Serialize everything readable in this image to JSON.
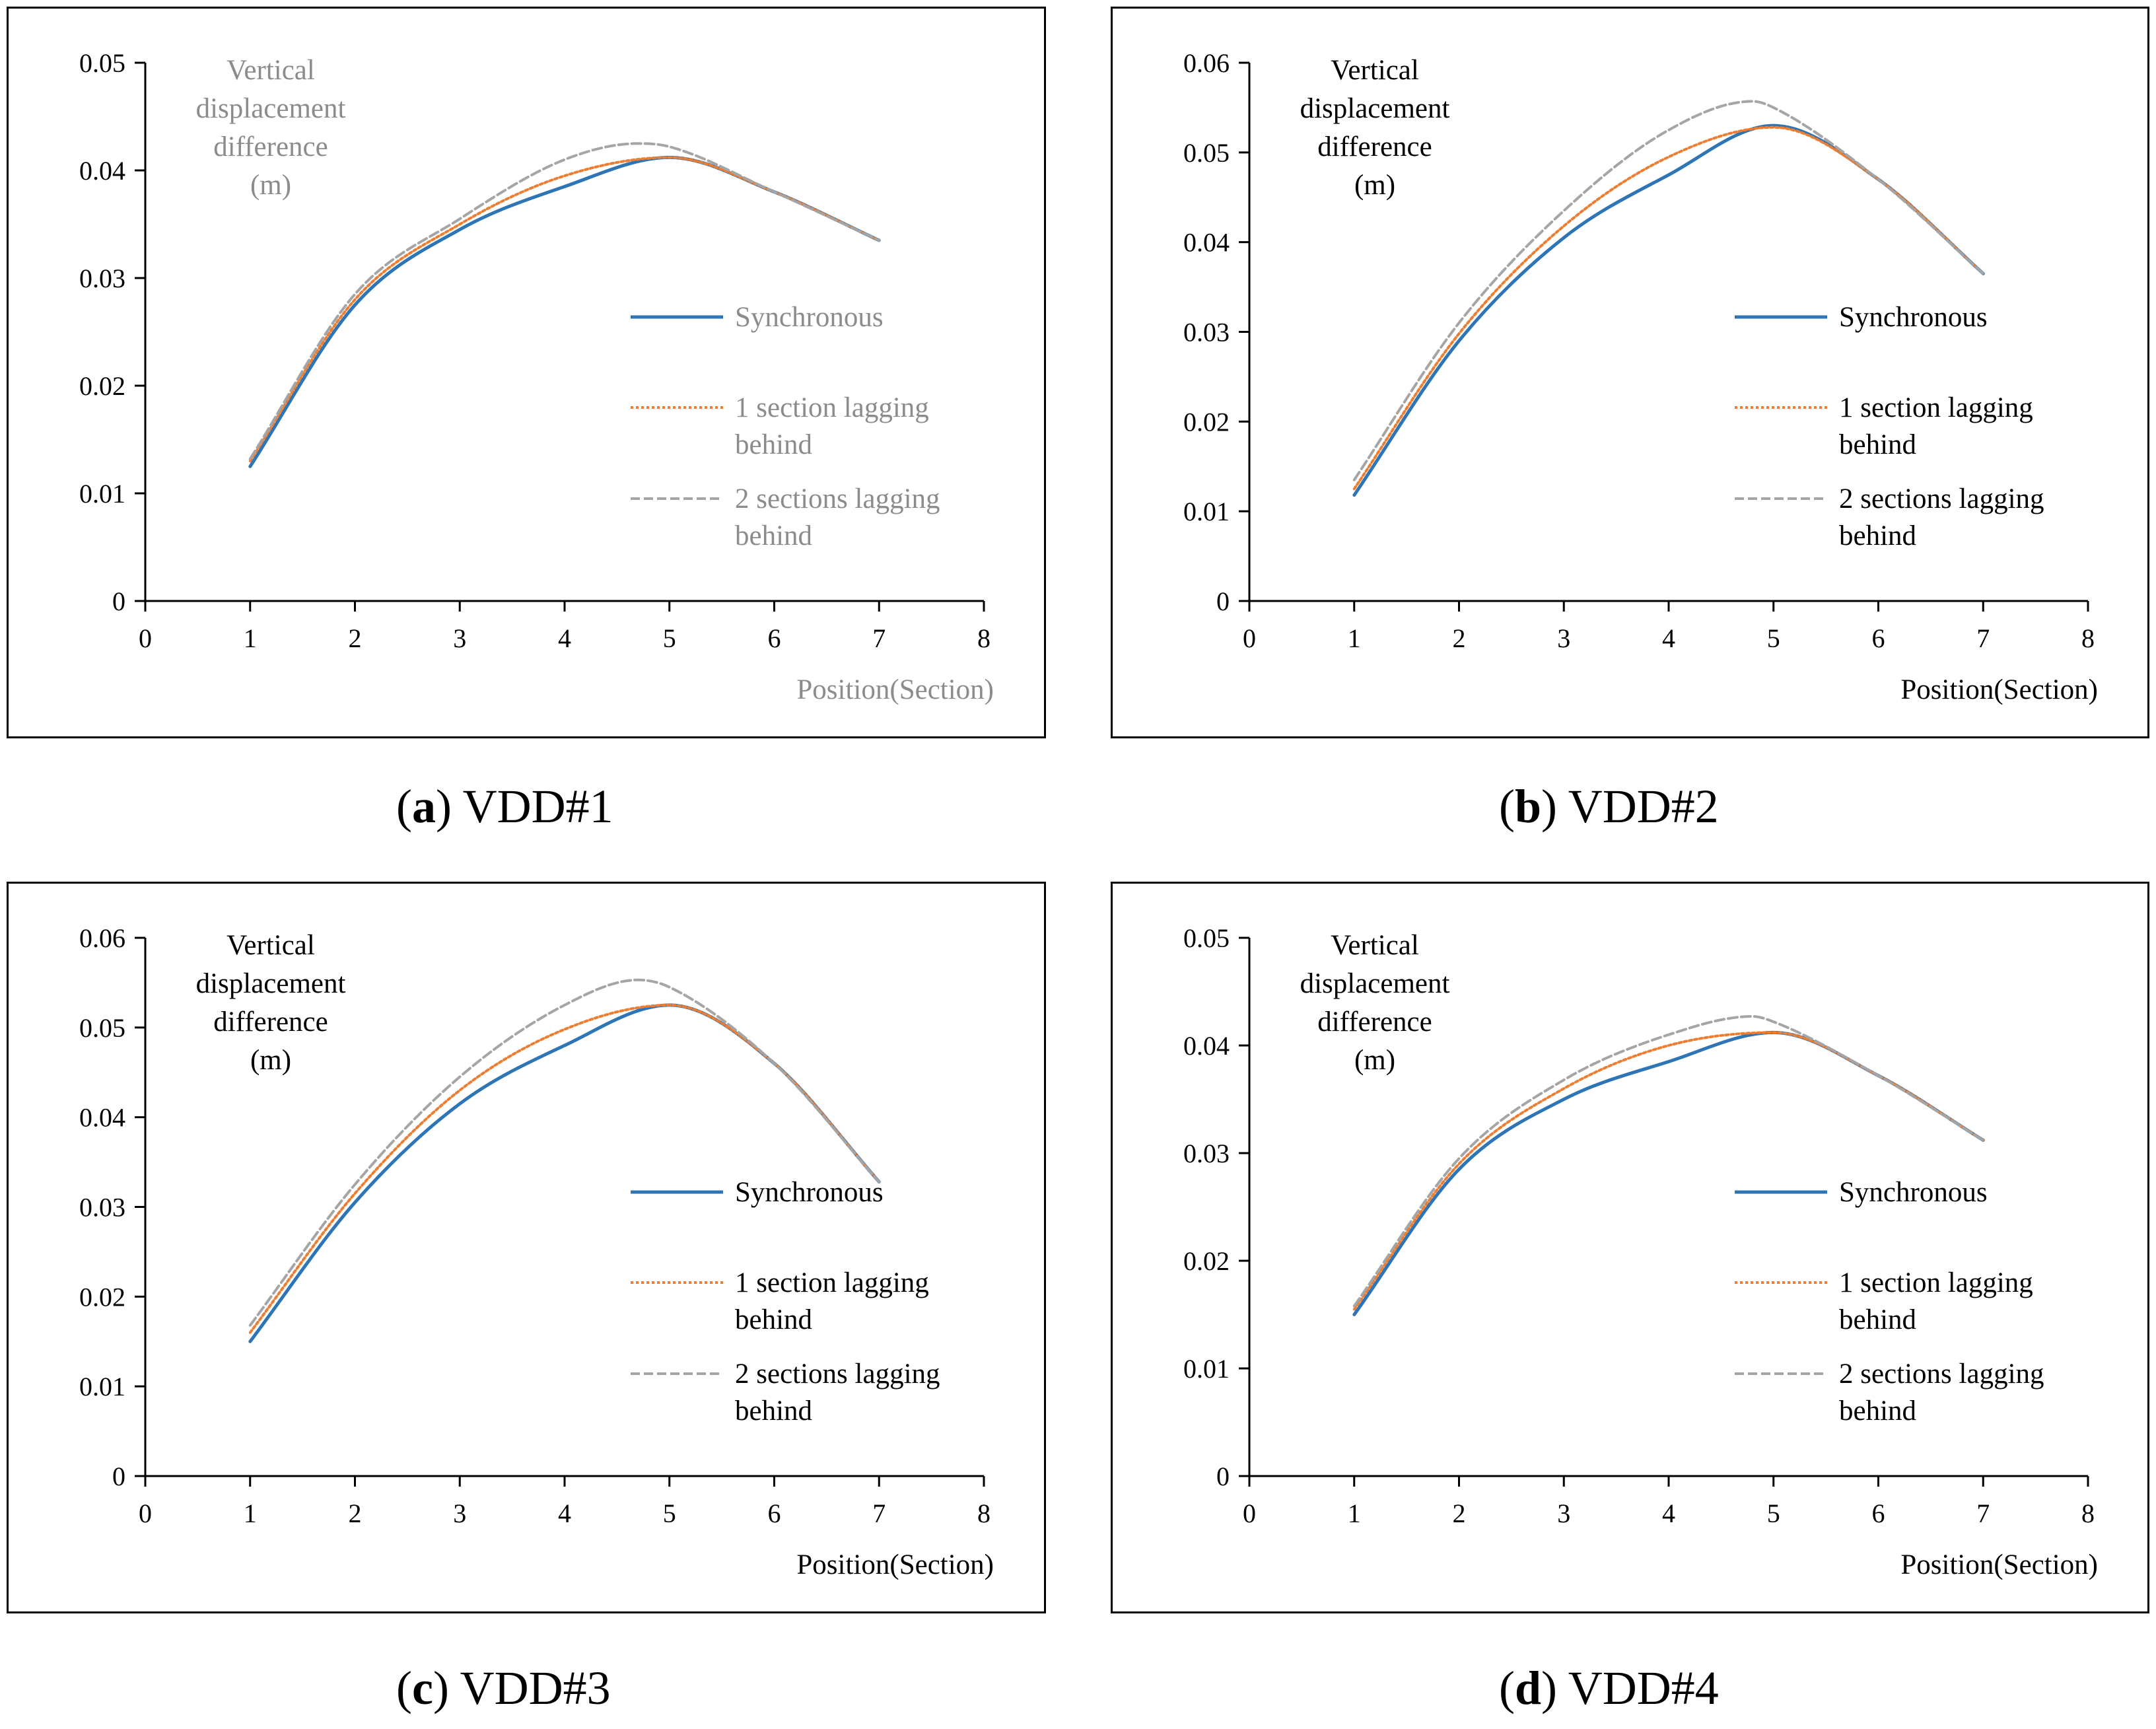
{
  "charts": [
    {
      "caption_letter": "a",
      "caption_text": "VDD#1",
      "chart_data": {
        "type": "line",
        "ylabel_lines": [
          "Vertical",
          "displacement",
          "difference",
          "(m)"
        ],
        "xlabel": "Position(Section)",
        "label_color": "#8c8c8c",
        "xlim": [
          0,
          8
        ],
        "ylim": [
          0,
          0.05
        ],
        "xticks": [
          "0",
          "1",
          "2",
          "3",
          "4",
          "5",
          "6",
          "7",
          "8"
        ],
        "yticks": [
          "0",
          "0.01",
          "0.02",
          "0.03",
          "0.04",
          "0.05"
        ],
        "legend_position": "right",
        "series": [
          {
            "name": "Synchronous",
            "color": "#2e75b6",
            "dash": "solid",
            "x": [
              1,
              2,
              3,
              4,
              5,
              6,
              7
            ],
            "y": [
              0.0125,
              0.0275,
              0.0345,
              0.0385,
              0.0412,
              0.038,
              0.0335
            ]
          },
          {
            "name": "1 section lagging behind",
            "color": "#ed7d31",
            "dash": "dotted",
            "x": [
              1,
              2,
              3,
              4,
              5,
              6,
              7
            ],
            "y": [
              0.013,
              0.028,
              0.035,
              0.0395,
              0.0412,
              0.038,
              0.0335
            ]
          },
          {
            "name": "2 sections lagging behind",
            "color": "#a5a5a5",
            "dash": "dashed",
            "x": [
              1,
              2,
              3,
              4,
              4.7,
              5,
              6,
              7
            ],
            "y": [
              0.0132,
              0.0285,
              0.0355,
              0.041,
              0.0425,
              0.0422,
              0.038,
              0.0335
            ]
          }
        ]
      }
    },
    {
      "caption_letter": "b",
      "caption_text": "VDD#2",
      "chart_data": {
        "type": "line",
        "ylabel_lines": [
          "Vertical",
          "displacement",
          "difference",
          "(m)"
        ],
        "xlabel": "Position(Section)",
        "label_color": "#000000",
        "xlim": [
          0,
          8
        ],
        "ylim": [
          0,
          0.06
        ],
        "xticks": [
          "0",
          "1",
          "2",
          "3",
          "4",
          "5",
          "6",
          "7",
          "8"
        ],
        "yticks": [
          "0",
          "0.01",
          "0.02",
          "0.03",
          "0.04",
          "0.05",
          "0.06"
        ],
        "legend_position": "right",
        "series": [
          {
            "name": "Synchronous",
            "color": "#2e75b6",
            "dash": "solid",
            "x": [
              1,
              2,
              3,
              4,
              5,
              6,
              7
            ],
            "y": [
              0.0118,
              0.029,
              0.0405,
              0.0475,
              0.053,
              0.047,
              0.0365
            ]
          },
          {
            "name": "1 section lagging behind",
            "color": "#ed7d31",
            "dash": "dotted",
            "x": [
              1,
              2,
              3,
              4,
              5,
              6,
              7
            ],
            "y": [
              0.0125,
              0.0298,
              0.0418,
              0.0495,
              0.0528,
              0.047,
              0.0365
            ]
          },
          {
            "name": "2 sections lagging behind",
            "color": "#a5a5a5",
            "dash": "dashed",
            "x": [
              1,
              2,
              3,
              4,
              4.8,
              5,
              6,
              7
            ],
            "y": [
              0.0135,
              0.031,
              0.0435,
              0.0525,
              0.0557,
              0.055,
              0.047,
              0.0365
            ]
          }
        ]
      }
    },
    {
      "caption_letter": "c",
      "caption_text": "VDD#3",
      "chart_data": {
        "type": "line",
        "ylabel_lines": [
          "Vertical",
          "displacement",
          "difference",
          "(m)"
        ],
        "xlabel": "Position(Section)",
        "label_color": "#000000",
        "xlim": [
          0,
          8
        ],
        "ylim": [
          0,
          0.06
        ],
        "xticks": [
          "0",
          "1",
          "2",
          "3",
          "4",
          "5",
          "6",
          "7",
          "8"
        ],
        "yticks": [
          "0",
          "0.01",
          "0.02",
          "0.03",
          "0.04",
          "0.05",
          "0.06"
        ],
        "legend_position": "right",
        "series": [
          {
            "name": "Synchronous",
            "color": "#2e75b6",
            "dash": "solid",
            "x": [
              1,
              2,
              3,
              4,
              5,
              6,
              7
            ],
            "y": [
              0.015,
              0.0305,
              0.0415,
              0.048,
              0.0525,
              0.046,
              0.0328
            ]
          },
          {
            "name": "1 section lagging behind",
            "color": "#ed7d31",
            "dash": "dotted",
            "x": [
              1,
              2,
              3,
              4,
              5,
              6,
              7
            ],
            "y": [
              0.016,
              0.0315,
              0.043,
              0.0498,
              0.0525,
              0.046,
              0.0328
            ]
          },
          {
            "name": "2 sections lagging behind",
            "color": "#a5a5a5",
            "dash": "dashed",
            "x": [
              1,
              2,
              3,
              4,
              4.7,
              5,
              6,
              7
            ],
            "y": [
              0.0168,
              0.0325,
              0.0445,
              0.0525,
              0.0553,
              0.0545,
              0.046,
              0.0328
            ]
          }
        ]
      }
    },
    {
      "caption_letter": "d",
      "caption_text": "VDD#4",
      "chart_data": {
        "type": "line",
        "ylabel_lines": [
          "Vertical",
          "displacement",
          "difference",
          "(m)"
        ],
        "xlabel": "Position(Section)",
        "label_color": "#000000",
        "xlim": [
          0,
          8
        ],
        "ylim": [
          0,
          0.05
        ],
        "xticks": [
          "0",
          "1",
          "2",
          "3",
          "4",
          "5",
          "6",
          "7",
          "8"
        ],
        "yticks": [
          "0",
          "0.01",
          "0.02",
          "0.03",
          "0.04",
          "0.05"
        ],
        "legend_position": "right",
        "series": [
          {
            "name": "Synchronous",
            "color": "#2e75b6",
            "dash": "solid",
            "x": [
              1,
              2,
              3,
              4,
              5,
              6,
              7
            ],
            "y": [
              0.015,
              0.0285,
              0.035,
              0.0385,
              0.0412,
              0.0372,
              0.0312
            ]
          },
          {
            "name": "1 section lagging behind",
            "color": "#ed7d31",
            "dash": "dotted",
            "x": [
              1,
              2,
              3,
              4,
              5,
              6,
              7
            ],
            "y": [
              0.0155,
              0.029,
              0.036,
              0.04,
              0.0412,
              0.0372,
              0.0312
            ]
          },
          {
            "name": "2 sections lagging behind",
            "color": "#a5a5a5",
            "dash": "dashed",
            "x": [
              1,
              2,
              3,
              4,
              4.8,
              5,
              6,
              7
            ],
            "y": [
              0.0158,
              0.0295,
              0.0368,
              0.041,
              0.0427,
              0.0422,
              0.0372,
              0.0312
            ]
          }
        ]
      }
    }
  ]
}
